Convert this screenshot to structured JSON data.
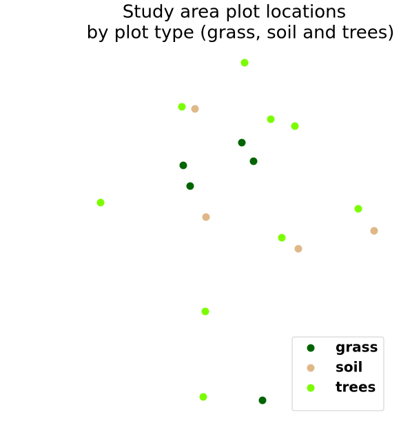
{
  "chart_data": {
    "type": "scatter",
    "title": [
      "Study area plot locations",
      "by plot type (grass, soil and trees)"
    ],
    "xlim": [
      130,
      560
    ],
    "ylim": [
      40,
      570
    ],
    "grid": false,
    "legend": "lower right",
    "series": [
      {
        "name": "grass",
        "color": "#006400",
        "x": [
          351,
          266,
          368,
          276,
          381
        ],
        "y": [
          433,
          400,
          406,
          370,
          59
        ]
      },
      {
        "name": "soil",
        "color": "#deb887",
        "x": [
          283,
          299,
          543,
          433
        ],
        "y": [
          482,
          325,
          305,
          279
        ]
      },
      {
        "name": "trees",
        "color": "#7cfc00",
        "x": [
          355,
          264,
          393,
          428,
          146,
          520,
          409,
          298,
          295
        ],
        "y": [
          549,
          485,
          467,
          457,
          346,
          337,
          295,
          188,
          64
        ]
      }
    ]
  }
}
